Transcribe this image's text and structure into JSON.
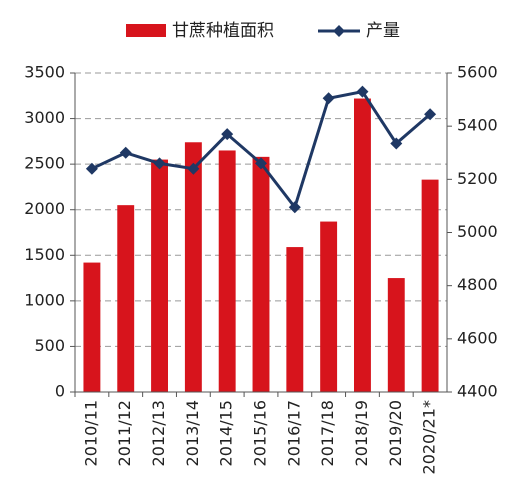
{
  "chart_data": {
    "type": "bar_line",
    "categories": [
      "2010/11",
      "2011/12",
      "2012/13",
      "2013/14",
      "2014/15",
      "2015/16",
      "2016/17",
      "2017/18",
      "2018/19",
      "2019/20",
      "2020/21*"
    ],
    "series": [
      {
        "name": "甘蔗种植面积",
        "type": "bar",
        "color": "#d7141c",
        "values": [
          1420,
          2050,
          2550,
          2740,
          2650,
          2580,
          1590,
          1870,
          3220,
          1250,
          2330
        ]
      },
      {
        "name": "产量",
        "type": "line",
        "axis": "y2",
        "color": "#1f3864",
        "values": [
          5240,
          5300,
          5260,
          5240,
          5370,
          5260,
          5095,
          5505,
          5530,
          5335,
          5445
        ]
      }
    ],
    "ylim": [
      0,
      3500
    ],
    "yticks": [
      0,
      500,
      1000,
      1500,
      2000,
      2500,
      3000,
      3500
    ],
    "y2lim": [
      4400,
      5600
    ],
    "y2ticks": [
      4400,
      4600,
      4800,
      5000,
      5200,
      5400,
      5600
    ],
    "grid": true,
    "legend": "top"
  }
}
